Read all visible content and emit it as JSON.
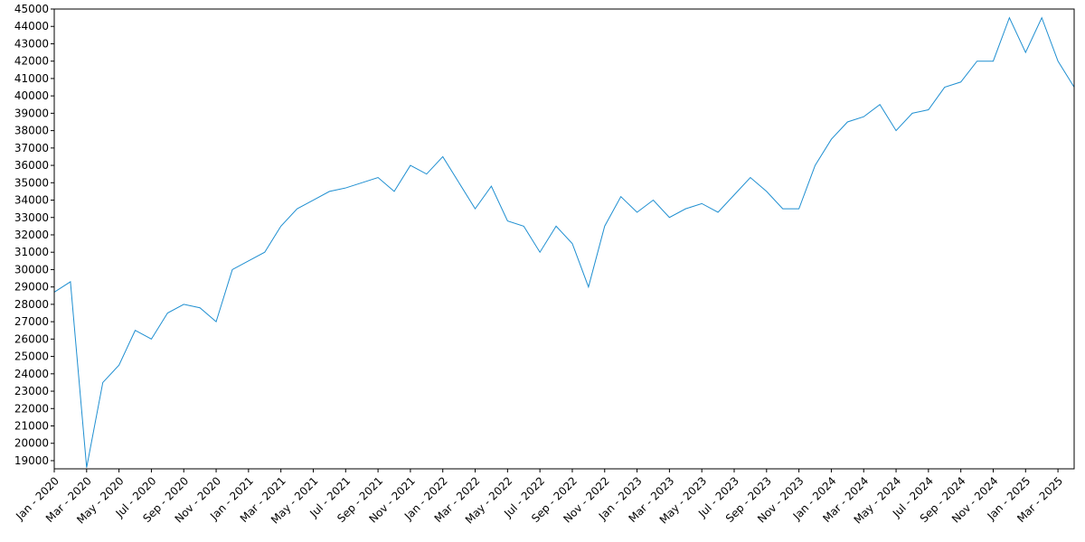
{
  "chart_data": {
    "type": "line",
    "x": [
      "2020-01",
      "2020-02",
      "2020-03",
      "2020-04",
      "2020-05",
      "2020-06",
      "2020-07",
      "2020-08",
      "2020-09",
      "2020-10",
      "2020-11",
      "2020-12",
      "2021-01",
      "2021-02",
      "2021-03",
      "2021-04",
      "2021-05",
      "2021-06",
      "2021-07",
      "2021-08",
      "2021-09",
      "2021-10",
      "2021-11",
      "2021-12",
      "2022-01",
      "2022-02",
      "2022-03",
      "2022-04",
      "2022-05",
      "2022-06",
      "2022-07",
      "2022-08",
      "2022-09",
      "2022-10",
      "2022-11",
      "2022-12",
      "2023-01",
      "2023-02",
      "2023-03",
      "2023-04",
      "2023-05",
      "2023-06",
      "2023-07",
      "2023-08",
      "2023-09",
      "2023-10",
      "2023-11",
      "2023-12",
      "2024-01",
      "2024-02",
      "2024-03",
      "2024-04",
      "2024-05",
      "2024-06",
      "2024-07",
      "2024-08",
      "2024-09",
      "2024-10",
      "2024-11",
      "2024-12",
      "2025-01",
      "2025-02",
      "2025-03",
      "2025-04"
    ],
    "series": [
      {
        "color": "#1f8fd1",
        "values": [
          28700,
          29300,
          18600,
          23500,
          24500,
          26500,
          26000,
          27500,
          28000,
          27800,
          27000,
          30000,
          30500,
          31000,
          32500,
          33500,
          34000,
          34500,
          34700,
          35000,
          35300,
          34500,
          36000,
          35500,
          36500,
          35000,
          33500,
          34800,
          32800,
          32500,
          31000,
          32500,
          31500,
          29000,
          32500,
          34200,
          33300,
          34000,
          33000,
          33500,
          33800,
          33300,
          34300,
          35300,
          34500,
          33500,
          33500,
          36000,
          37500,
          38500,
          38800,
          39500,
          38000,
          39000,
          39200,
          40500,
          40800,
          42000,
          42000,
          44500,
          42500,
          44500,
          42000,
          40500
        ]
      }
    ],
    "xlim": [
      "2020-01",
      "2025-04"
    ],
    "xticks": [
      {
        "value": "2020-01",
        "label": "Jan - 2020"
      },
      {
        "value": "2020-03",
        "label": "Mar - 2020"
      },
      {
        "value": "2020-05",
        "label": "May - 2020"
      },
      {
        "value": "2020-07",
        "label": "Jul - 2020"
      },
      {
        "value": "2020-09",
        "label": "Sep - 2020"
      },
      {
        "value": "2020-11",
        "label": "Nov - 2020"
      },
      {
        "value": "2021-01",
        "label": "Jan - 2021"
      },
      {
        "value": "2021-03",
        "label": "Mar - 2021"
      },
      {
        "value": "2021-05",
        "label": "May - 2021"
      },
      {
        "value": "2021-07",
        "label": "Jul - 2021"
      },
      {
        "value": "2021-09",
        "label": "Sep - 2021"
      },
      {
        "value": "2021-11",
        "label": "Nov - 2021"
      },
      {
        "value": "2022-01",
        "label": "Jan - 2022"
      },
      {
        "value": "2022-03",
        "label": "Mar - 2022"
      },
      {
        "value": "2022-05",
        "label": "May - 2022"
      },
      {
        "value": "2022-07",
        "label": "Jul - 2022"
      },
      {
        "value": "2022-09",
        "label": "Sep - 2022"
      },
      {
        "value": "2022-11",
        "label": "Nov - 2022"
      },
      {
        "value": "2023-01",
        "label": "Jan - 2023"
      },
      {
        "value": "2023-03",
        "label": "Mar - 2023"
      },
      {
        "value": "2023-05",
        "label": "May - 2023"
      },
      {
        "value": "2023-07",
        "label": "Jul - 2023"
      },
      {
        "value": "2023-09",
        "label": "Sep - 2023"
      },
      {
        "value": "2023-11",
        "label": "Nov - 2023"
      },
      {
        "value": "2024-01",
        "label": "Jan - 2024"
      },
      {
        "value": "2024-03",
        "label": "Mar - 2024"
      },
      {
        "value": "2024-05",
        "label": "May - 2024"
      },
      {
        "value": "2024-07",
        "label": "Jul - 2024"
      },
      {
        "value": "2024-09",
        "label": "Sep - 2024"
      },
      {
        "value": "2024-11",
        "label": "Nov - 2024"
      },
      {
        "value": "2025-01",
        "label": "Jan - 2025"
      },
      {
        "value": "2025-03",
        "label": "Mar - 2025"
      }
    ],
    "ylim": [
      18530,
      45000
    ],
    "yticks": [
      19000,
      20000,
      21000,
      22000,
      23000,
      24000,
      25000,
      26000,
      27000,
      28000,
      29000,
      30000,
      31000,
      32000,
      33000,
      34000,
      35000,
      36000,
      37000,
      38000,
      39000,
      40000,
      41000,
      42000,
      43000,
      44000,
      45000
    ],
    "grid": false
  }
}
